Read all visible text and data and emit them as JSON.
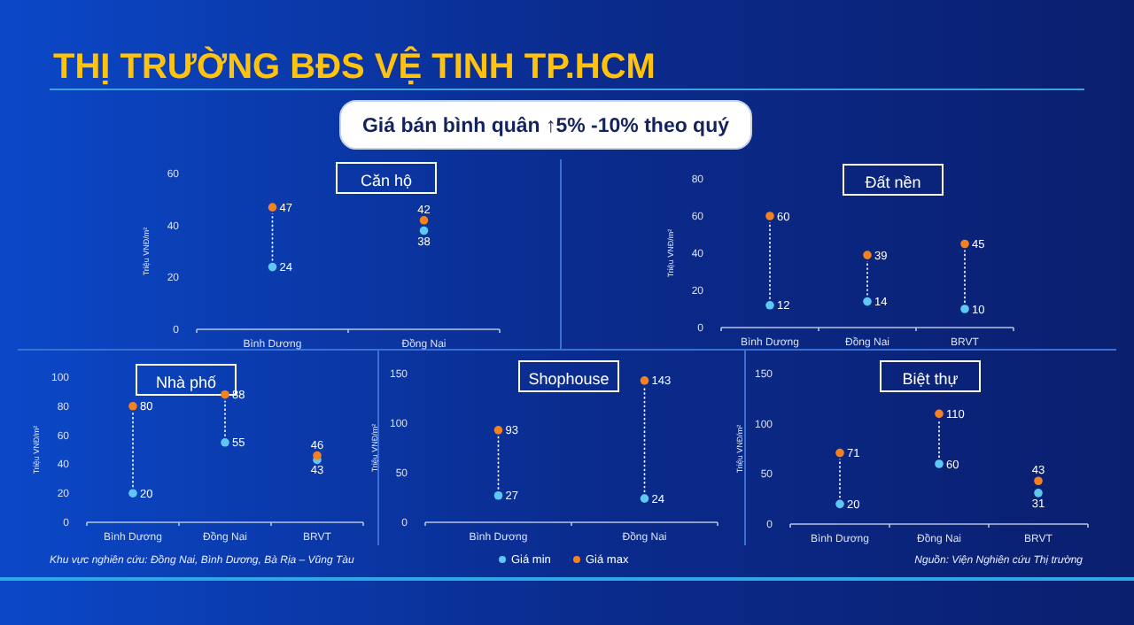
{
  "chart_data": [
    {
      "type": "other",
      "title": "THỊ TRƯỜNG BĐS VỆ TINH TP.HCM",
      "subtitle": "Giá bán bình quân ↑5% -10% theo quý",
      "annotations": [
        "Khu vực nghiên cứu: Đồng Nai, Bình Dương, Bà Rịa – Vũng Tàu",
        "Nguồn: Viện Nghiên cứu Thị trường"
      ]
    },
    {
      "type": "scatter",
      "title": "Căn hộ",
      "ylabel": "Triệu VNĐ/m²",
      "categories": [
        "Bình Dương",
        "Đồng Nai"
      ],
      "ylim": [
        0,
        60
      ],
      "yticks": [
        0,
        20,
        40,
        60
      ],
      "marker": "circle",
      "data_labels": true,
      "series": [
        {
          "color": "#5ec8f2",
          "values": [
            24,
            38
          ]
        },
        {
          "color": "#f58220",
          "values": [
            47,
            42
          ]
        }
      ]
    },
    {
      "type": "scatter",
      "title": "Đất nền",
      "ylabel": "Triệu VNĐ/m²",
      "categories": [
        "Bình Dương",
        "Đồng Nai",
        "BRVT"
      ],
      "ylim": [
        0,
        80
      ],
      "yticks": [
        0,
        20,
        40,
        60,
        80
      ],
      "marker": "circle",
      "data_labels": true,
      "series": [
        {
          "color": "#5ec8f2",
          "values": [
            12,
            14,
            10
          ]
        },
        {
          "color": "#f58220",
          "values": [
            60,
            39,
            45
          ]
        }
      ]
    },
    {
      "type": "scatter",
      "title": "Nhà phố",
      "ylabel": "Triệu VNĐ/m²",
      "categories": [
        "Bình Dương",
        "Đồng Nai",
        "BRVT"
      ],
      "ylim": [
        0,
        100
      ],
      "yticks": [
        0,
        20,
        40,
        60,
        80,
        100
      ],
      "marker": "circle",
      "data_labels": true,
      "series": [
        {
          "color": "#5ec8f2",
          "values": [
            20,
            55,
            43
          ]
        },
        {
          "color": "#f58220",
          "values": [
            80,
            88,
            46
          ]
        }
      ]
    },
    {
      "type": "scatter",
      "title": "Shophouse",
      "ylabel": "Triệu VNĐ/m²",
      "categories": [
        "Bình Dương",
        "Đồng Nai"
      ],
      "ylim": [
        0,
        150
      ],
      "yticks": [
        0,
        50,
        100,
        150
      ],
      "marker": "circle",
      "data_labels": true,
      "legend": "bottom",
      "series": [
        {
          "name": "Giá min",
          "color": "#5ec8f2",
          "values": [
            27,
            24
          ]
        },
        {
          "name": "Giá max",
          "color": "#f58220",
          "values": [
            93,
            143
          ]
        }
      ]
    },
    {
      "type": "scatter",
      "title": "Biệt thự",
      "ylabel": "Triệu VNĐ/m²",
      "categories": [
        "Bình Dương",
        "Đồng Nai",
        "BRVT"
      ],
      "ylim": [
        0,
        150
      ],
      "yticks": [
        0,
        50,
        100,
        150
      ],
      "marker": "circle",
      "data_labels": true,
      "series": [
        {
          "color": "#5ec8f2",
          "values": [
            20,
            60,
            31
          ]
        },
        {
          "color": "#f58220",
          "values": [
            71,
            110,
            43
          ]
        }
      ]
    }
  ]
}
